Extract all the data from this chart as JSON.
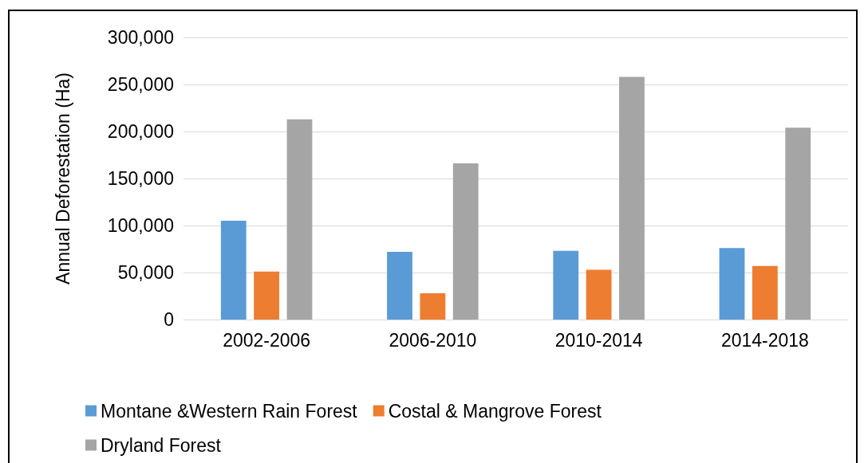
{
  "chart_data": {
    "type": "bar",
    "ylabel": "Annual Deforestation (Ha)",
    "categories": [
      "2002-2006",
      "2006-2010",
      "2010-2014",
      "2014-2018"
    ],
    "series": [
      {
        "name": "Montane &Western Rain Forest",
        "color": "#5b9bd5",
        "values": [
          105000,
          72000,
          73000,
          76000
        ]
      },
      {
        "name": "Costal & Mangrove Forest",
        "color": "#ed7d31",
        "values": [
          51000,
          28000,
          53000,
          57000
        ]
      },
      {
        "name": "Dryland Forest",
        "color": "#a5a5a5",
        "values": [
          213000,
          166000,
          258000,
          204000
        ]
      }
    ],
    "ylim": [
      0,
      300000
    ],
    "yticks": [
      0,
      {
        "value": 50000,
        "label": "50,000"
      },
      {
        "value": 100000,
        "label": "100,000"
      },
      {
        "value": 150000,
        "label": "150,000"
      },
      {
        "value": 200000,
        "label": "200,000"
      },
      {
        "value": 250000,
        "label": "250,000"
      },
      {
        "value": 300000,
        "label": "300,000"
      }
    ],
    "grid": "y",
    "legend": "bottom"
  }
}
